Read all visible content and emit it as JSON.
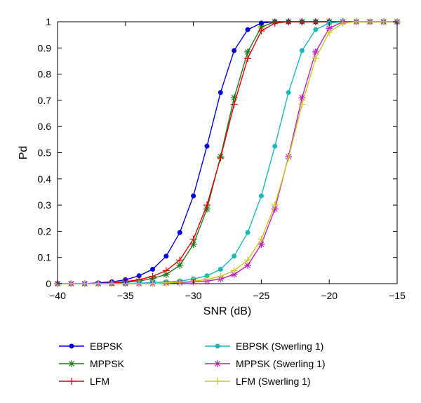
{
  "chart_data": {
    "type": "line",
    "title": "",
    "xlabel": "SNR (dB)",
    "ylabel": "Pd",
    "xlim": [
      -40,
      -15
    ],
    "ylim": [
      0,
      1
    ],
    "x_ticks": [
      -40,
      -35,
      -30,
      -25,
      -20,
      -15
    ],
    "x_tick_labels": [
      "−40",
      "−35",
      "−30",
      "−25",
      "−20",
      "−15"
    ],
    "y_ticks": [
      0,
      0.1,
      0.2,
      0.3,
      0.4,
      0.5,
      0.6,
      0.7,
      0.8,
      0.9,
      1
    ],
    "y_tick_labels": [
      "0",
      "0.1",
      "0.2",
      "0.3",
      "0.4",
      "0.5",
      "0.6",
      "0.7",
      "0.8",
      "0.9",
      "1"
    ],
    "grid": false,
    "legend_position": "bottom",
    "x": [
      -40,
      -39,
      -38,
      -37,
      -36,
      -35,
      -34,
      -33,
      -32,
      -31,
      -30,
      -29,
      -28,
      -27,
      -26,
      -25,
      -24,
      -23,
      -22,
      -21,
      -20,
      -19,
      -18,
      -17,
      -16,
      -15
    ],
    "series": [
      {
        "name": "EBPSK",
        "color": "#0000dd",
        "marker": "circle",
        "values": [
          0,
          0,
          0,
          0.003,
          0.007,
          0.015,
          0.03,
          0.055,
          0.105,
          0.195,
          0.335,
          0.525,
          0.73,
          0.89,
          0.97,
          0.995,
          1,
          1,
          1,
          1,
          1,
          1,
          1,
          1,
          1,
          1
        ]
      },
      {
        "name": "MPPSK",
        "color": "#1d7a1d",
        "marker": "star",
        "values": [
          0,
          0,
          0,
          0,
          0.002,
          0.005,
          0.01,
          0.02,
          0.035,
          0.07,
          0.15,
          0.285,
          0.485,
          0.71,
          0.885,
          0.98,
          1,
          1,
          1,
          1,
          1,
          1,
          1,
          1,
          1,
          1
        ]
      },
      {
        "name": "LFM",
        "color": "#e00000",
        "marker": "plus",
        "values": [
          0,
          0,
          0,
          0,
          0.003,
          0.008,
          0.015,
          0.028,
          0.05,
          0.09,
          0.17,
          0.3,
          0.48,
          0.685,
          0.86,
          0.965,
          0.995,
          1,
          1,
          1,
          1,
          1,
          1,
          1,
          1,
          1
        ]
      },
      {
        "name": "EBPSK (Swerling 1)",
        "color": "#1ab8b8",
        "marker": "circle",
        "values": [
          0,
          0,
          0,
          0,
          0,
          0,
          0.002,
          0.004,
          0.007,
          0.01,
          0.018,
          0.03,
          0.055,
          0.105,
          0.195,
          0.335,
          0.525,
          0.73,
          0.89,
          0.97,
          0.995,
          1,
          1,
          1,
          1,
          1
        ]
      },
      {
        "name": "MPPSK (Swerling 1)",
        "color": "#c020c0",
        "marker": "star",
        "values": [
          0,
          0,
          0,
          0,
          0,
          0,
          0,
          0,
          0.002,
          0.004,
          0.007,
          0.01,
          0.018,
          0.035,
          0.07,
          0.15,
          0.285,
          0.485,
          0.71,
          0.885,
          0.975,
          1,
          1,
          1,
          1,
          1
        ]
      },
      {
        "name": "LFM (Swerling 1)",
        "color": "#c8c820",
        "marker": "plus",
        "values": [
          0,
          0,
          0,
          0,
          0,
          0,
          0,
          0,
          0.003,
          0.006,
          0.01,
          0.016,
          0.028,
          0.05,
          0.09,
          0.17,
          0.3,
          0.48,
          0.685,
          0.86,
          0.96,
          0.995,
          1,
          1,
          1,
          1
        ]
      }
    ]
  }
}
